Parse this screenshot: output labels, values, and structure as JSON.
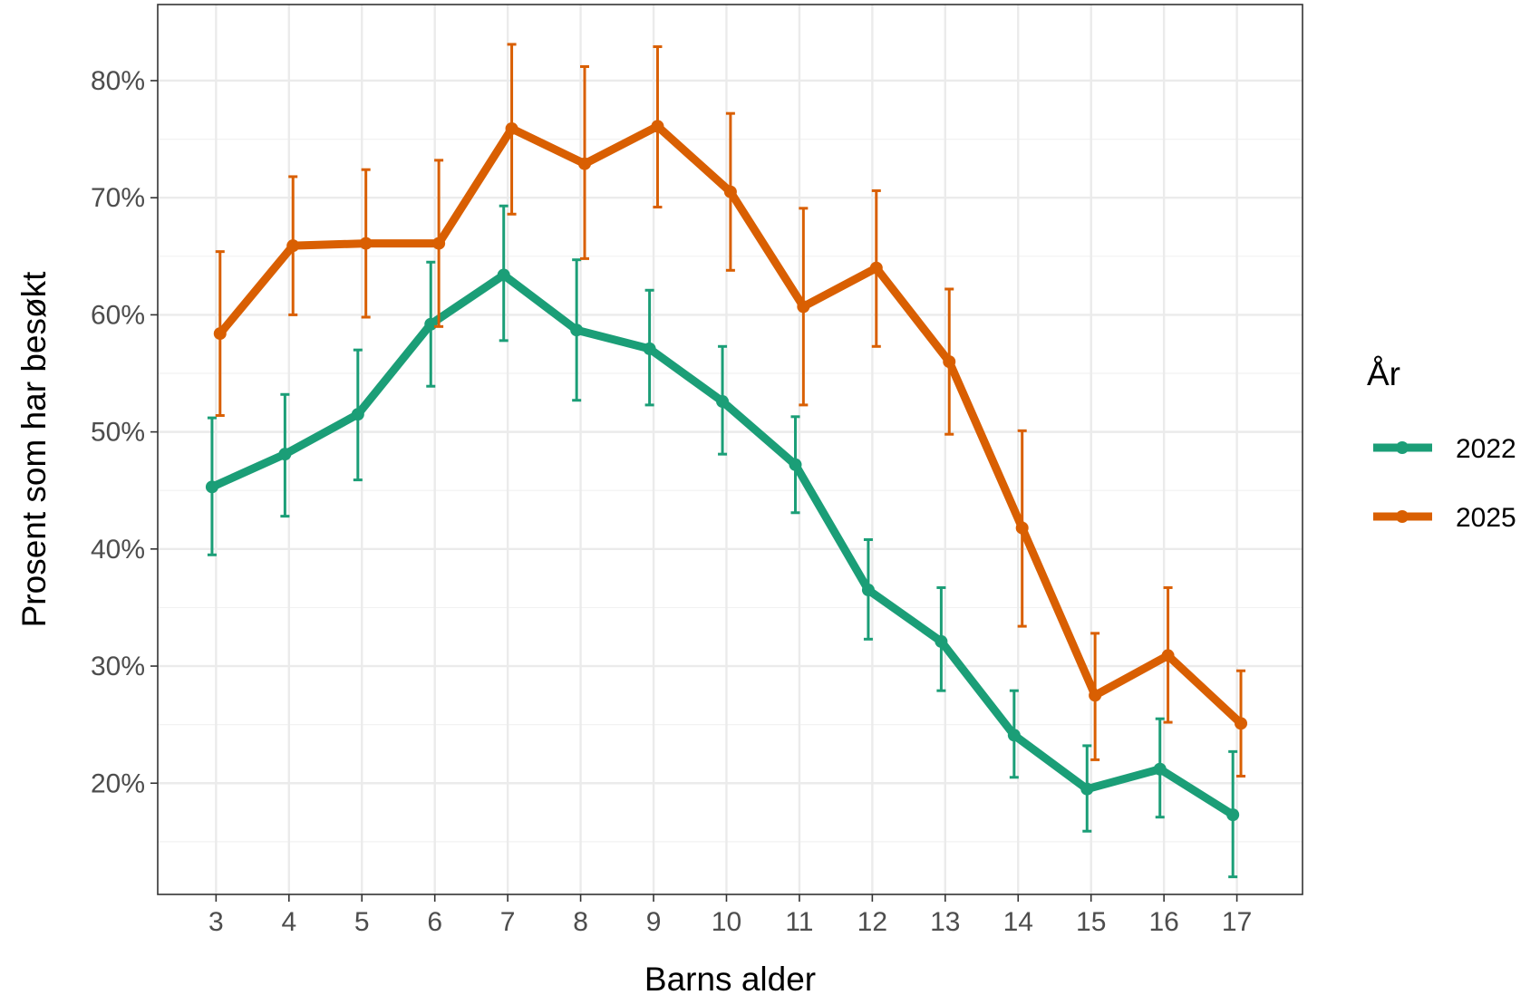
{
  "chart_data": {
    "type": "line",
    "xlabel": "Barns alder",
    "ylabel": "Prosent som har besøkt",
    "x": [
      3,
      4,
      5,
      6,
      7,
      8,
      9,
      10,
      11,
      12,
      13,
      14,
      15,
      16,
      17
    ],
    "x_tick_labels": [
      "3",
      "4",
      "5",
      "6",
      "7",
      "8",
      "9",
      "10",
      "11",
      "12",
      "13",
      "14",
      "15",
      "16",
      "17"
    ],
    "xlim": [
      2.2,
      17.9
    ],
    "ylim": [
      0.105,
      0.865
    ],
    "y_ticks": [
      0.2,
      0.3,
      0.4,
      0.5,
      0.6,
      0.7,
      0.8
    ],
    "y_tick_labels": [
      "20%",
      "30%",
      "40%",
      "50%",
      "60%",
      "70%",
      "80%"
    ],
    "grid": true,
    "error_bars": true,
    "legend": {
      "title": "År",
      "placement": "right"
    },
    "series": [
      {
        "name": "2022",
        "color": "#1b9e77",
        "values": [
          0.453,
          0.481,
          0.515,
          0.592,
          0.634,
          0.587,
          0.571,
          0.526,
          0.472,
          0.365,
          0.321,
          0.241,
          0.195,
          0.212,
          0.173
        ],
        "lower": [
          0.395,
          0.428,
          0.459,
          0.539,
          0.578,
          0.527,
          0.523,
          0.481,
          0.431,
          0.323,
          0.279,
          0.205,
          0.159,
          0.171,
          0.12
        ],
        "upper": [
          0.512,
          0.532,
          0.57,
          0.645,
          0.693,
          0.647,
          0.621,
          0.573,
          0.513,
          0.408,
          0.367,
          0.279,
          0.232,
          0.255,
          0.227
        ]
      },
      {
        "name": "2025",
        "color": "#d95f02",
        "values": [
          0.584,
          0.659,
          0.661,
          0.661,
          0.759,
          0.729,
          0.761,
          0.705,
          0.607,
          0.64,
          0.56,
          0.418,
          0.275,
          0.309,
          0.251
        ],
        "lower": [
          0.514,
          0.6,
          0.598,
          0.59,
          0.686,
          0.648,
          0.692,
          0.638,
          0.523,
          0.573,
          0.498,
          0.334,
          0.22,
          0.252,
          0.206
        ],
        "upper": [
          0.654,
          0.718,
          0.724,
          0.732,
          0.831,
          0.812,
          0.829,
          0.772,
          0.691,
          0.706,
          0.622,
          0.501,
          0.328,
          0.367,
          0.296
        ]
      }
    ]
  }
}
